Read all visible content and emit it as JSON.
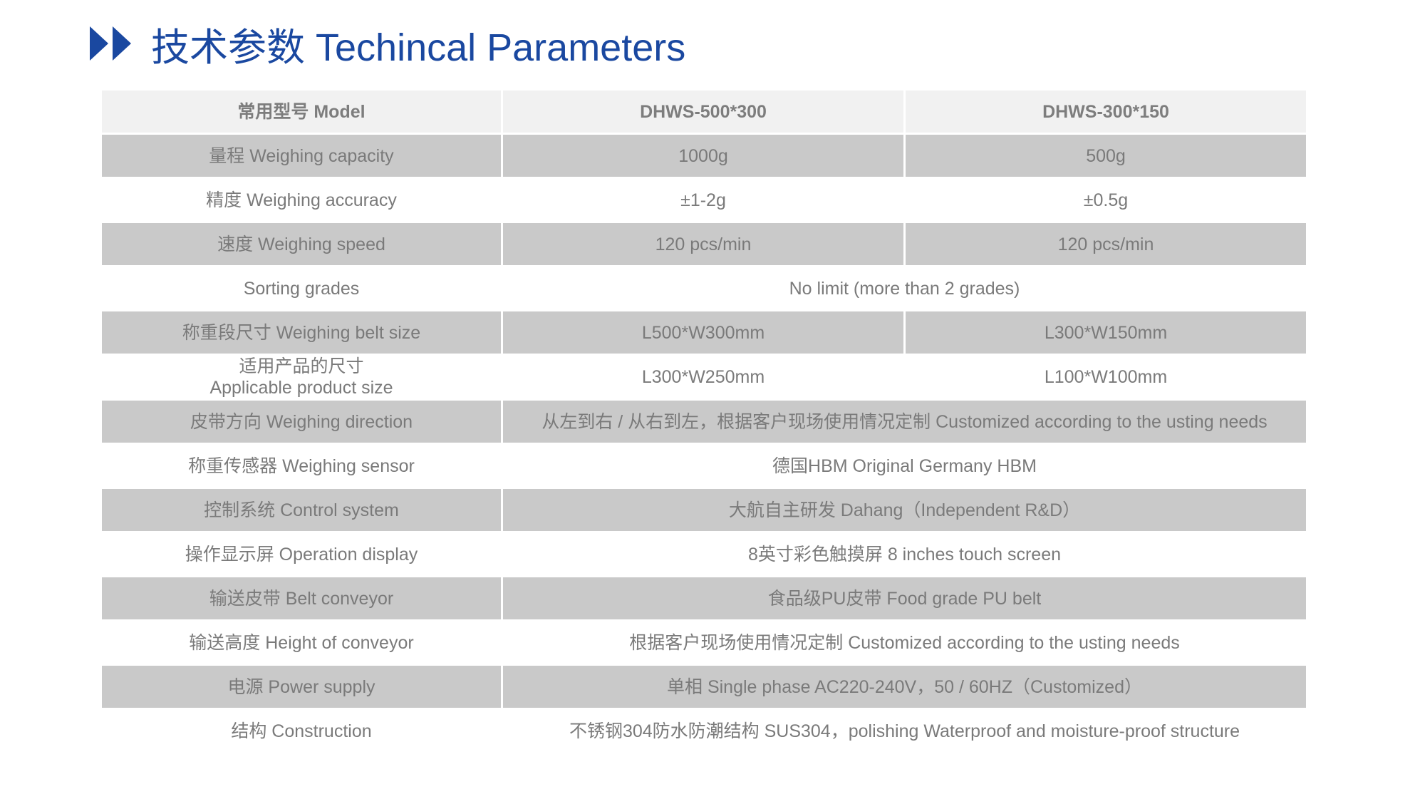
{
  "header": {
    "title": "技术参数 Techincal Parameters",
    "icon": "double-play-arrows-icon",
    "accent_color": "#1a48a0"
  },
  "table": {
    "columns": [
      "常用型号 Model",
      "DHWS-500*300",
      "DHWS-300*150"
    ],
    "rows": [
      {
        "label": "量程 Weighing capacity",
        "values": [
          "1000g",
          "500g"
        ]
      },
      {
        "label": "精度 Weighing accuracy",
        "values": [
          "±1-2g",
          "±0.5g"
        ]
      },
      {
        "label": "速度 Weighing speed",
        "values": [
          "120 pcs/min",
          "120 pcs/min"
        ]
      },
      {
        "label": "Sorting grades",
        "values": [
          "No limit (more than 2 grades)"
        ]
      },
      {
        "label": "称重段尺寸 Weighing belt size",
        "values": [
          "L500*W300mm",
          "L300*W150mm"
        ]
      },
      {
        "label": "适用产品的尺寸",
        "label2": "Applicable product size",
        "values": [
          "L300*W250mm",
          "L100*W100mm"
        ]
      },
      {
        "label": "皮带方向 Weighing direction",
        "values": [
          "从左到右 / 从右到左，根据客户现场使用情况定制 Customized according to the usting needs"
        ]
      },
      {
        "label": "称重传感器 Weighing sensor",
        "values": [
          "德国HBM Original Germany HBM"
        ]
      },
      {
        "label": "控制系统 Control system",
        "values": [
          "大航自主研发 Dahang（Independent R&D）"
        ]
      },
      {
        "label": "操作显示屏 Operation display",
        "values": [
          "8英寸彩色触摸屏 8 inches touch screen"
        ]
      },
      {
        "label": "输送皮带 Belt conveyor",
        "values": [
          "食品级PU皮带 Food grade PU belt"
        ]
      },
      {
        "label": "输送高度 Height of conveyor",
        "values": [
          "根据客户现场使用情况定制 Customized according to the usting needs"
        ]
      },
      {
        "label": "电源 Power supply",
        "values": [
          "单相 Single phase AC220-240V，50 / 60HZ（Customized）"
        ]
      },
      {
        "label": "结构 Construction",
        "values": [
          "不锈钢304防水防潮结构 SUS304，polishing Waterproof and moisture-proof structure"
        ]
      }
    ]
  }
}
